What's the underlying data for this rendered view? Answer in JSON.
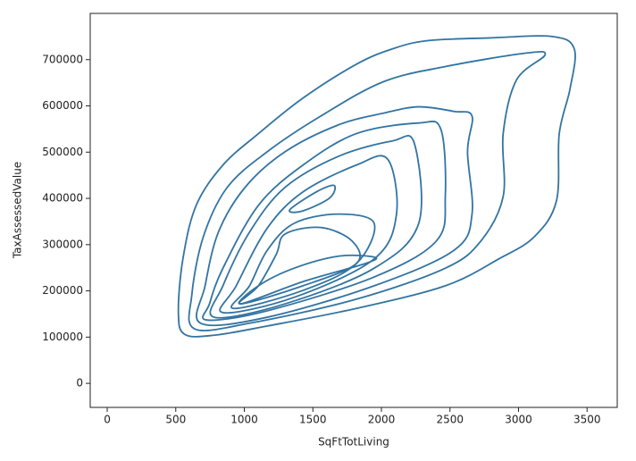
{
  "chart_data": {
    "type": "contour",
    "xlabel": "SqFtTotLiving",
    "ylabel": "TaxAssessedValue",
    "color": "#3274a1",
    "xlim": [
      -124,
      3720
    ],
    "xticks": [
      0,
      500,
      1000,
      1500,
      2000,
      2500,
      3000,
      3500
    ],
    "ylim": [
      -52000,
      800000
    ],
    "yticks": [
      0,
      100000,
      200000,
      300000,
      400000,
      500000,
      600000,
      700000
    ],
    "series": [
      {
        "x": [
          565,
          779,
          1168,
          1817,
          2466,
          2856,
          3115,
          3277,
          3297,
          3375,
          3407,
          3245,
          2791,
          2336,
          2077,
          1817,
          1428,
          1103,
          844,
          649,
          552,
          519
        ],
        "y": [
          106000,
          104000,
          124000,
          162000,
          211000,
          269000,
          317000,
          395000,
          540000,
          636000,
          723000,
          750000,
          747000,
          741000,
          723000,
          690000,
          617000,
          540000,
          472000,
          385000,
          269000,
          153000
        ]
      },
      {
        "x": [
          636,
          1038,
          1817,
          2466,
          2726,
          2888,
          2888,
          2985,
          3193,
          3050,
          2466,
          2012,
          1558,
          1168,
          876,
          701,
          617
        ],
        "y": [
          118000,
          130000,
          182000,
          249000,
          308000,
          404000,
          540000,
          656000,
          710000,
          714000,
          685000,
          652000,
          578000,
          501000,
          424000,
          317000,
          191000
        ]
      },
      {
        "x": [
          681,
          1168,
          1947,
          2531,
          2661,
          2628,
          2661,
          2531,
          2272,
          2012,
          1687,
          1298,
          1006,
          811,
          714
        ],
        "y": [
          130000,
          143000,
          211000,
          288000,
          366000,
          501000,
          578000,
          588000,
          598000,
          584000,
          559000,
          501000,
          424000,
          327000,
          211000
        ]
      },
      {
        "x": [
          727,
          1168,
          1947,
          2401,
          2466,
          2434,
          2272,
          1817,
          1428,
          1103,
          844,
          746
        ],
        "y": [
          137000,
          157000,
          230000,
          308000,
          404000,
          549000,
          563000,
          540000,
          472000,
          385000,
          249000,
          172000
        ]
      },
      {
        "x": [
          779,
          1298,
          1947,
          2272,
          2239,
          2077,
          1687,
          1298,
          1038,
          844
        ],
        "y": [
          143000,
          172000,
          249000,
          346000,
          520000,
          524000,
          491000,
          424000,
          327000,
          211000
        ]
      },
      {
        "x": [
          844,
          1363,
          1947,
          2110,
          2045,
          1817,
          1428,
          1168,
          941
        ],
        "y": [
          153000,
          186000,
          269000,
          366000,
          485000,
          472000,
          414000,
          336000,
          211000
        ]
      },
      {
        "x": [
          922,
          1428,
          1817,
          1947,
          1687,
          1363,
          1168,
          1038
        ],
        "y": [
          162000,
          201000,
          259000,
          346000,
          366000,
          346000,
          288000,
          211000
        ]
      },
      {
        "x": [
          974,
          1428,
          1817,
          1785,
          1558,
          1298,
          1233,
          1103
        ],
        "y": [
          172000,
          211000,
          259000,
          308000,
          337000,
          323000,
          279000,
          211000
        ]
      },
      {
        "x": [
          974,
          1428,
          1882,
          1947,
          1687,
          1363,
          1103
        ],
        "y": [
          172000,
          220000,
          259000,
          273000,
          275000,
          249000,
          211000
        ]
      },
      {
        "x": [
          1331,
          1525,
          1655,
          1623,
          1428
        ],
        "y": [
          375000,
          414000,
          428000,
          401000,
          373000
        ]
      }
    ]
  }
}
